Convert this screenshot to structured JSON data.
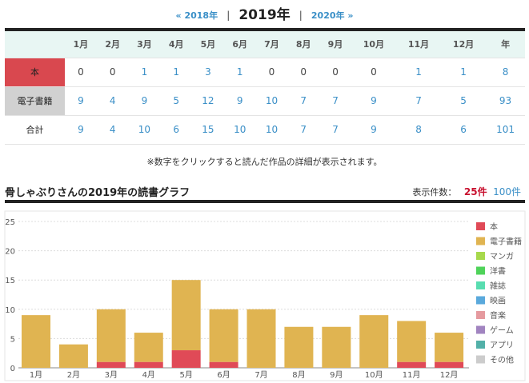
{
  "nav": {
    "prev": "« 2018年",
    "current": "2019年",
    "next": "2020年 »",
    "sep": "|"
  },
  "table": {
    "months": [
      "1月",
      "2月",
      "3月",
      "4月",
      "5月",
      "6月",
      "7月",
      "8月",
      "9月",
      "10月",
      "11月",
      "12月",
      "年"
    ],
    "rows": [
      {
        "label": "本",
        "values": [
          "0",
          "0",
          "1",
          "1",
          "3",
          "1",
          "0",
          "0",
          "0",
          "0",
          "1",
          "1",
          "8"
        ]
      },
      {
        "label": "電子書籍",
        "values": [
          "9",
          "4",
          "9",
          "5",
          "12",
          "9",
          "10",
          "7",
          "7",
          "9",
          "7",
          "5",
          "93"
        ]
      },
      {
        "label": "合計",
        "values": [
          "9",
          "4",
          "10",
          "6",
          "15",
          "10",
          "10",
          "7",
          "7",
          "9",
          "8",
          "6",
          "101"
        ]
      }
    ]
  },
  "note": "※数字をクリックすると読んだ作品の詳細が表示されます。",
  "graph": {
    "title": "骨しゃぶりさんの2019年の読書グラフ",
    "count_label": "表示件数：",
    "count_active": "25件",
    "count_other": "100件"
  },
  "chart_data": {
    "type": "bar",
    "stacked": true,
    "categories": [
      "1月",
      "2月",
      "3月",
      "4月",
      "5月",
      "6月",
      "7月",
      "8月",
      "9月",
      "10月",
      "11月",
      "12月"
    ],
    "series": [
      {
        "name": "本",
        "color": "#e04a57",
        "values": [
          0,
          0,
          1,
          1,
          3,
          1,
          0,
          0,
          0,
          0,
          1,
          1
        ]
      },
      {
        "name": "電子書籍",
        "color": "#e0b451",
        "values": [
          9,
          4,
          9,
          5,
          12,
          9,
          10,
          7,
          7,
          9,
          7,
          5
        ]
      },
      {
        "name": "マンガ",
        "color": "#a7d94c",
        "values": [
          0,
          0,
          0,
          0,
          0,
          0,
          0,
          0,
          0,
          0,
          0,
          0
        ]
      },
      {
        "name": "洋書",
        "color": "#4fd35a",
        "values": [
          0,
          0,
          0,
          0,
          0,
          0,
          0,
          0,
          0,
          0,
          0,
          0
        ]
      },
      {
        "name": "雑誌",
        "color": "#58ddb0",
        "values": [
          0,
          0,
          0,
          0,
          0,
          0,
          0,
          0,
          0,
          0,
          0,
          0
        ]
      },
      {
        "name": "映画",
        "color": "#5aa9dc",
        "values": [
          0,
          0,
          0,
          0,
          0,
          0,
          0,
          0,
          0,
          0,
          0,
          0
        ]
      },
      {
        "name": "音楽",
        "color": "#e59a9f",
        "values": [
          0,
          0,
          0,
          0,
          0,
          0,
          0,
          0,
          0,
          0,
          0,
          0
        ]
      },
      {
        "name": "ゲーム",
        "color": "#a184c0",
        "values": [
          0,
          0,
          0,
          0,
          0,
          0,
          0,
          0,
          0,
          0,
          0,
          0
        ]
      },
      {
        "name": "アプリ",
        "color": "#52b0a8",
        "values": [
          0,
          0,
          0,
          0,
          0,
          0,
          0,
          0,
          0,
          0,
          0,
          0
        ]
      },
      {
        "name": "その他",
        "color": "#cccccc",
        "values": [
          0,
          0,
          0,
          0,
          0,
          0,
          0,
          0,
          0,
          0,
          0,
          0
        ]
      }
    ],
    "ylim": [
      0,
      25
    ],
    "yticks": [
      0,
      5,
      10,
      15,
      20,
      25
    ],
    "grid": true,
    "legend": "right"
  }
}
